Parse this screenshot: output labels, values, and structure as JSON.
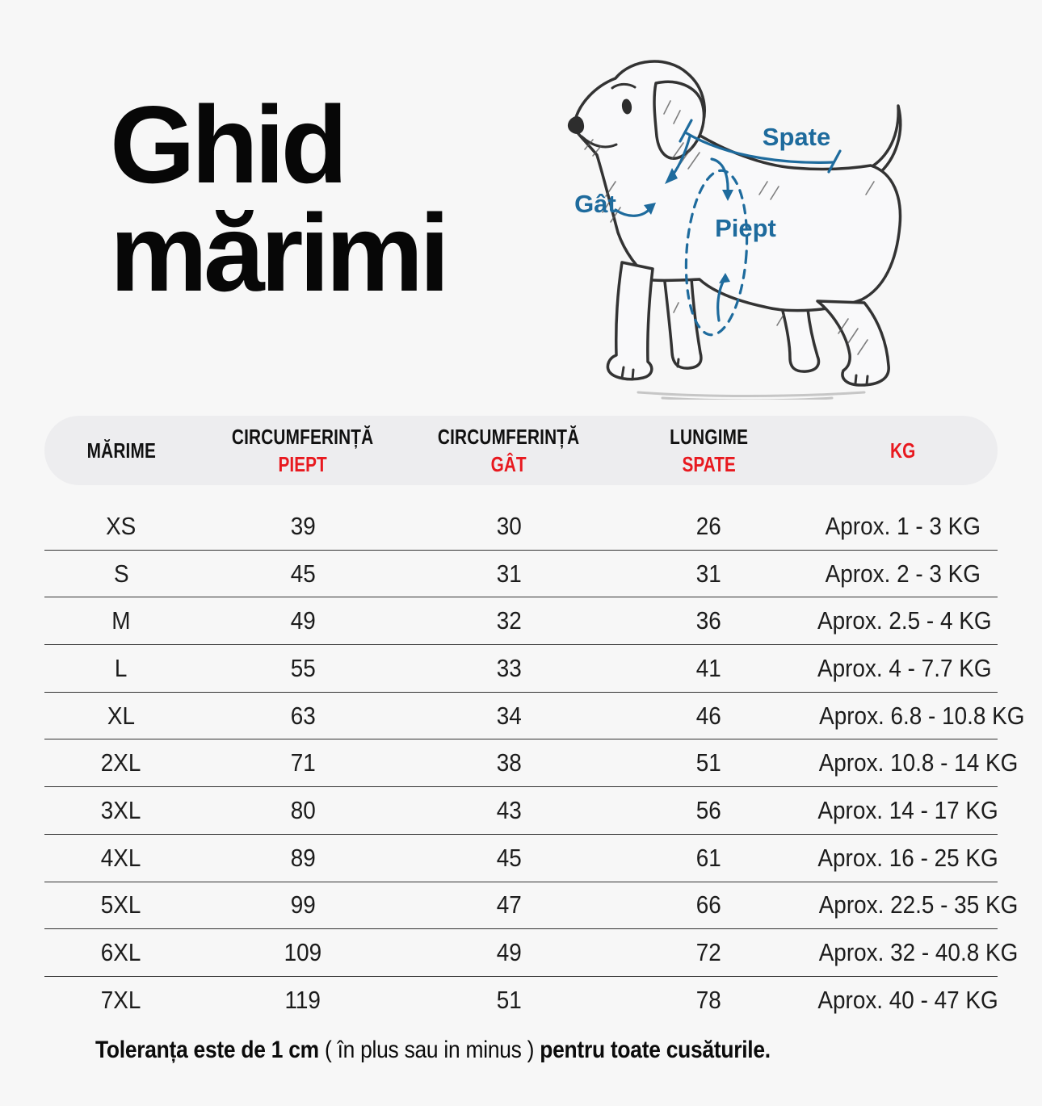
{
  "title": {
    "line1": "Ghid",
    "line2": "mărimi"
  },
  "diagram": {
    "labels": {
      "back": "Spate",
      "neck": "Gât",
      "chest": "Piept"
    },
    "annotation_color": "#1e6b9d",
    "sketch_color": "#333333"
  },
  "table": {
    "header": {
      "size": "MĂRIME",
      "chest_line1": "CIRCUMFERINȚĂ",
      "chest_line2": "PIEPT",
      "neck_line1": "CIRCUMFERINȚĂ",
      "neck_line2": "GÂT",
      "back_line1": "LUNGIME",
      "back_line2": "SPATE",
      "kg": "KG",
      "accent_color": "#e8191f"
    },
    "rows": [
      {
        "size": "XS",
        "chest": "39",
        "neck": "30",
        "back": "26",
        "kg": "Aprox. 1 - 3 KG"
      },
      {
        "size": "S",
        "chest": "45",
        "neck": "31",
        "back": "31",
        "kg": "Aprox. 2 - 3 KG"
      },
      {
        "size": "M",
        "chest": "49",
        "neck": "32",
        "back": "36",
        "kg": "Aprox. 2.5 - 4 KG"
      },
      {
        "size": "L",
        "chest": "55",
        "neck": "33",
        "back": "41",
        "kg": "Aprox. 4 - 7.7 KG"
      },
      {
        "size": "XL",
        "chest": "63",
        "neck": "34",
        "back": "46",
        "kg": "Aprox. 6.8 - 10.8 KG"
      },
      {
        "size": "2XL",
        "chest": "71",
        "neck": "38",
        "back": "51",
        "kg": "Aprox. 10.8 - 14 KG"
      },
      {
        "size": "3XL",
        "chest": "80",
        "neck": "43",
        "back": "56",
        "kg": "Aprox. 14 - 17 KG"
      },
      {
        "size": "4XL",
        "chest": "89",
        "neck": "45",
        "back": "61",
        "kg": "Aprox. 16 - 25 KG"
      },
      {
        "size": "5XL",
        "chest": "99",
        "neck": "47",
        "back": "66",
        "kg": "Aprox. 22.5 - 35 KG"
      },
      {
        "size": "6XL",
        "chest": "109",
        "neck": "49",
        "back": "72",
        "kg": "Aprox. 32 - 40.8 KG"
      },
      {
        "size": "7XL",
        "chest": "119",
        "neck": "51",
        "back": "78",
        "kg": "Aprox. 40 - 47 KG"
      }
    ]
  },
  "footnote": {
    "bold_start": "Toleranța este de 1 cm ",
    "normal_middle": "( în plus sau in minus ) ",
    "bold_end": "pentru toate cusăturile."
  }
}
